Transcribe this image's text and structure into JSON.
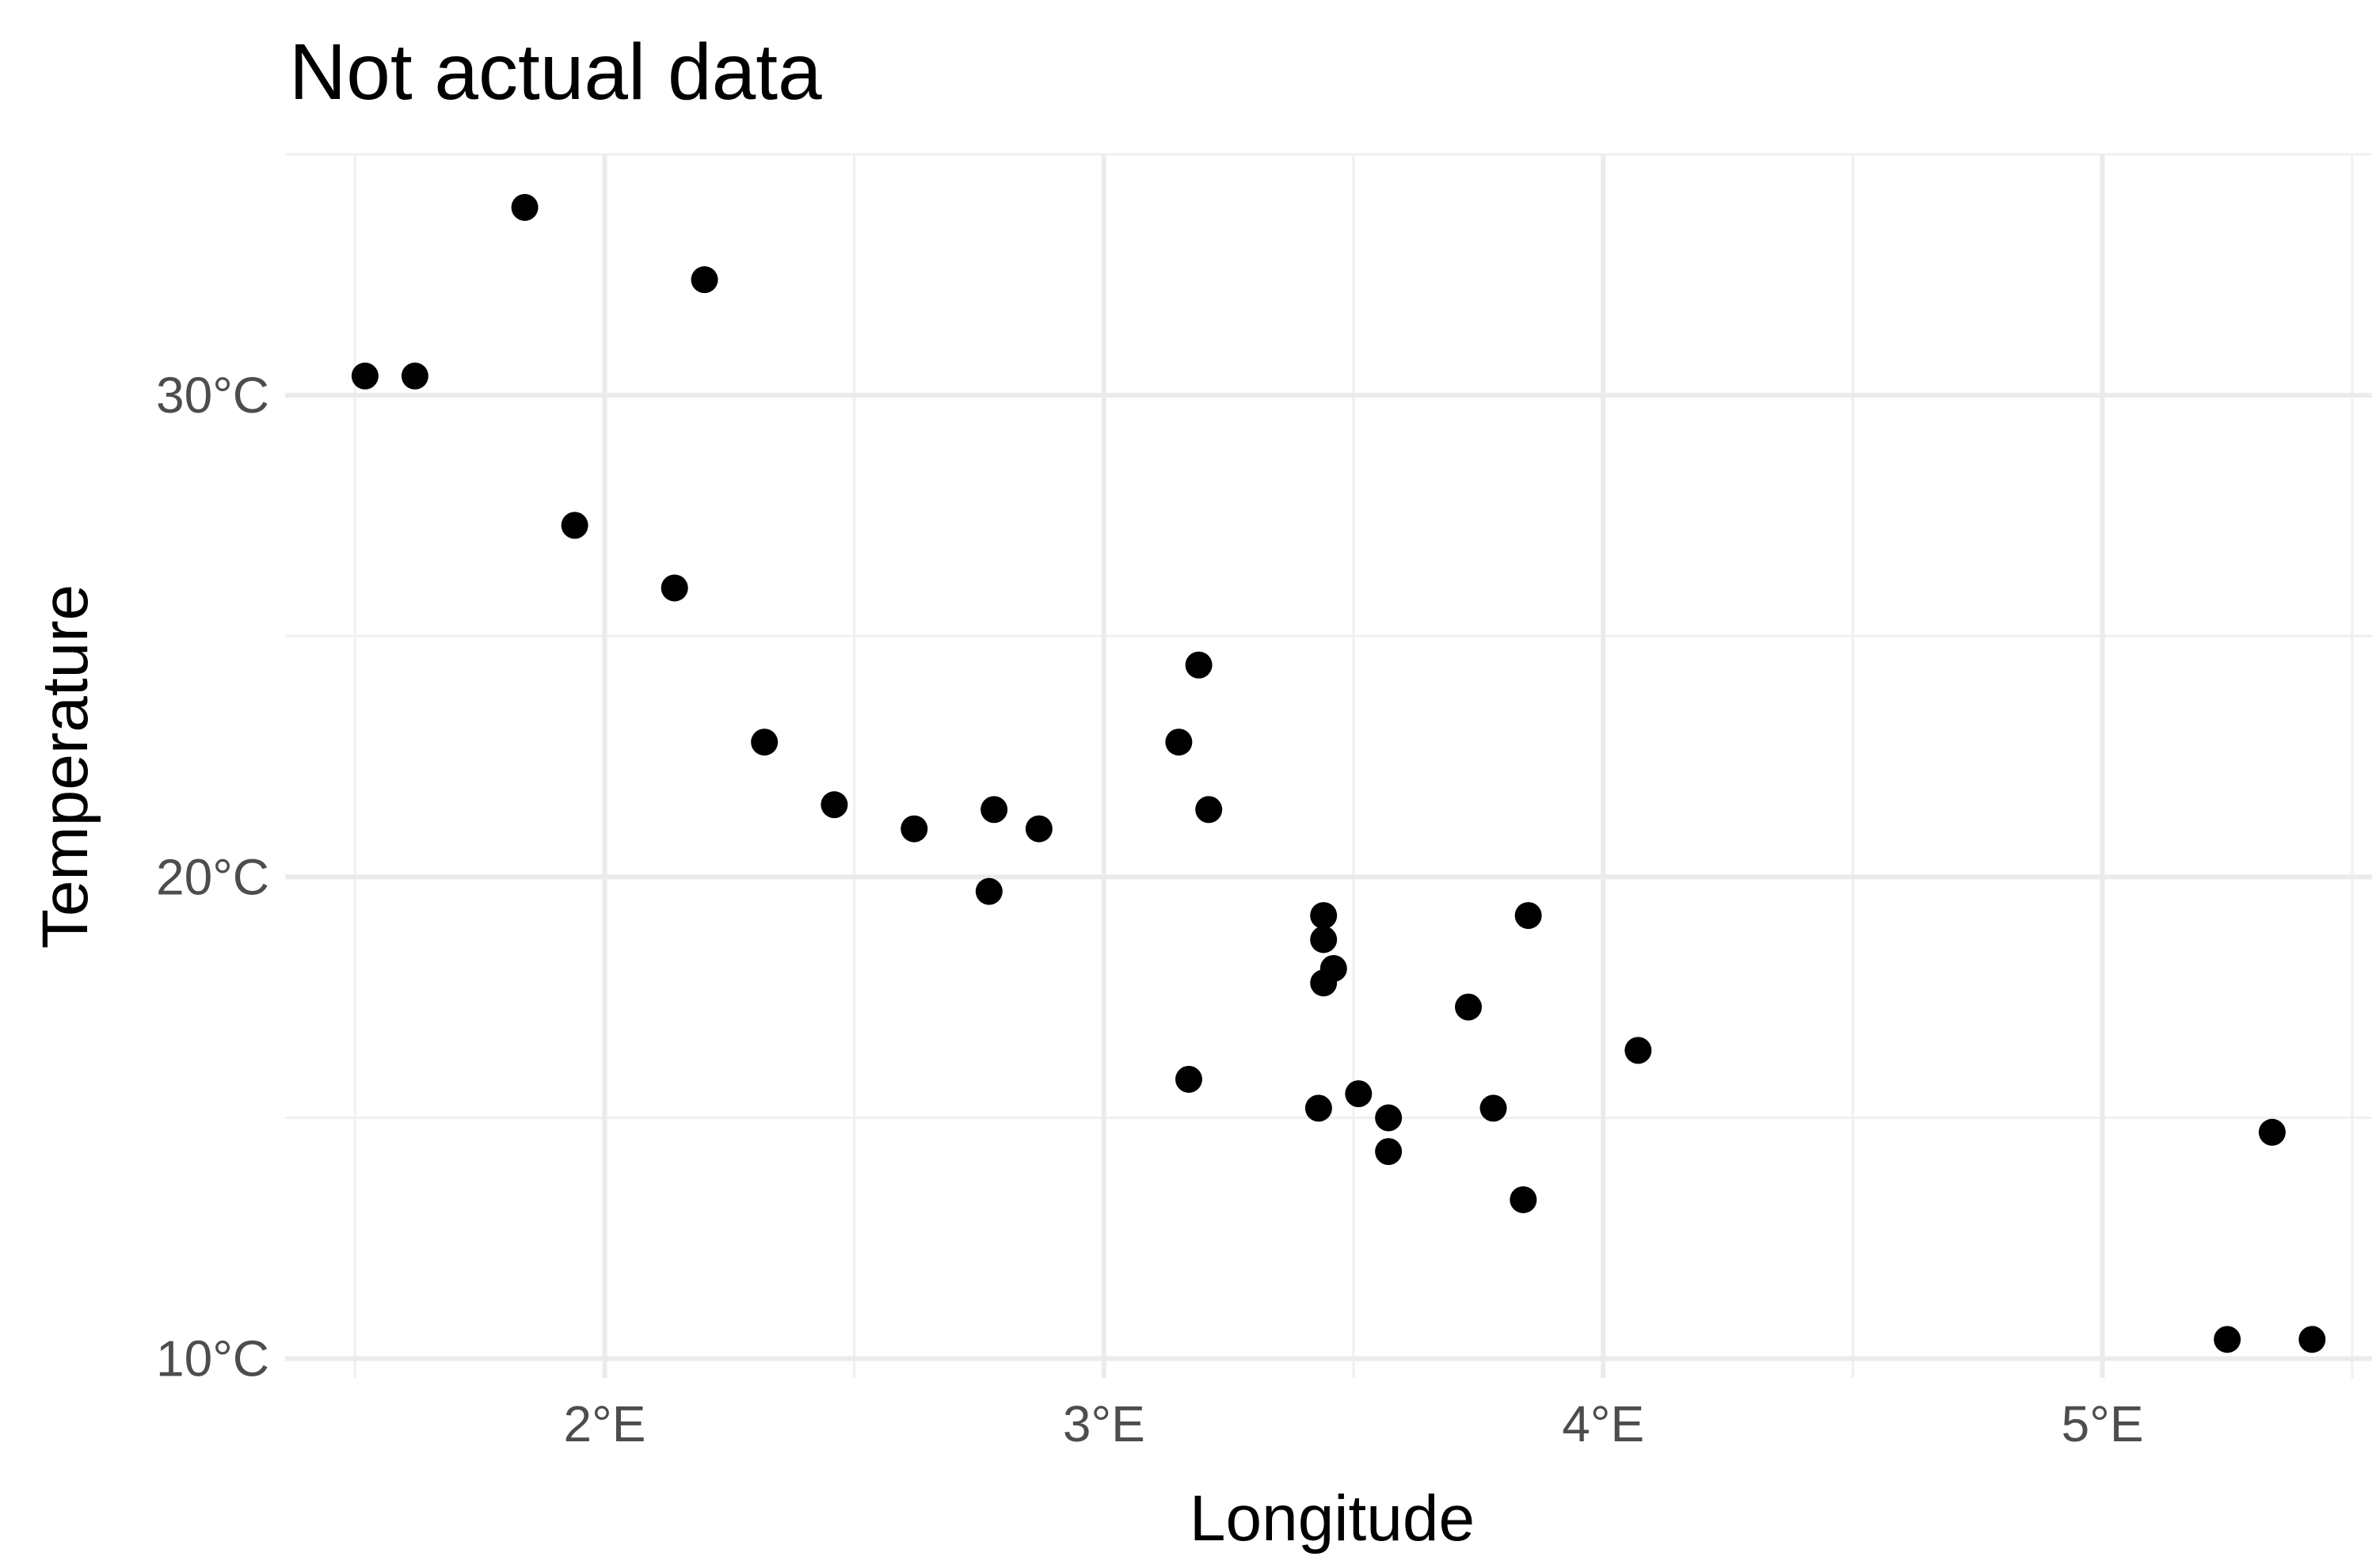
{
  "chart_data": {
    "type": "scatter",
    "title": "Not actual data",
    "xlabel": "Longitude",
    "ylabel": "Temperature",
    "xlim": [
      1.36,
      5.54
    ],
    "ylim": [
      9.6,
      35.0
    ],
    "x_ticks": [
      {
        "value": 2,
        "label": "2°E"
      },
      {
        "value": 3,
        "label": "3°E"
      },
      {
        "value": 4,
        "label": "4°E"
      },
      {
        "value": 5,
        "label": "5°E"
      }
    ],
    "y_ticks": [
      {
        "value": 10,
        "label": "10°C"
      },
      {
        "value": 20,
        "label": "20°C"
      },
      {
        "value": 30,
        "label": "30°C"
      }
    ],
    "grid": true,
    "legend": "none",
    "point_color": "#000000",
    "points": [
      {
        "x": 1.52,
        "y": 30.4
      },
      {
        "x": 1.62,
        "y": 30.4
      },
      {
        "x": 1.84,
        "y": 33.9
      },
      {
        "x": 1.94,
        "y": 27.3
      },
      {
        "x": 2.14,
        "y": 26.0
      },
      {
        "x": 2.2,
        "y": 32.4
      },
      {
        "x": 2.32,
        "y": 22.8
      },
      {
        "x": 2.46,
        "y": 21.5
      },
      {
        "x": 2.62,
        "y": 21.0
      },
      {
        "x": 2.77,
        "y": 19.7
      },
      {
        "x": 2.78,
        "y": 21.4
      },
      {
        "x": 2.87,
        "y": 21.0
      },
      {
        "x": 3.15,
        "y": 22.8
      },
      {
        "x": 3.17,
        "y": 15.8
      },
      {
        "x": 3.19,
        "y": 24.4
      },
      {
        "x": 3.21,
        "y": 21.4
      },
      {
        "x": 3.43,
        "y": 15.2
      },
      {
        "x": 3.44,
        "y": 19.2
      },
      {
        "x": 3.44,
        "y": 18.7
      },
      {
        "x": 3.44,
        "y": 17.8
      },
      {
        "x": 3.46,
        "y": 18.1
      },
      {
        "x": 3.51,
        "y": 15.5
      },
      {
        "x": 3.57,
        "y": 15.0
      },
      {
        "x": 3.57,
        "y": 14.3
      },
      {
        "x": 3.73,
        "y": 17.3
      },
      {
        "x": 3.78,
        "y": 15.2
      },
      {
        "x": 3.84,
        "y": 13.3
      },
      {
        "x": 3.85,
        "y": 19.2
      },
      {
        "x": 4.07,
        "y": 16.4
      },
      {
        "x": 5.25,
        "y": 10.4
      },
      {
        "x": 5.34,
        "y": 14.7
      },
      {
        "x": 5.42,
        "y": 10.4
      }
    ]
  }
}
